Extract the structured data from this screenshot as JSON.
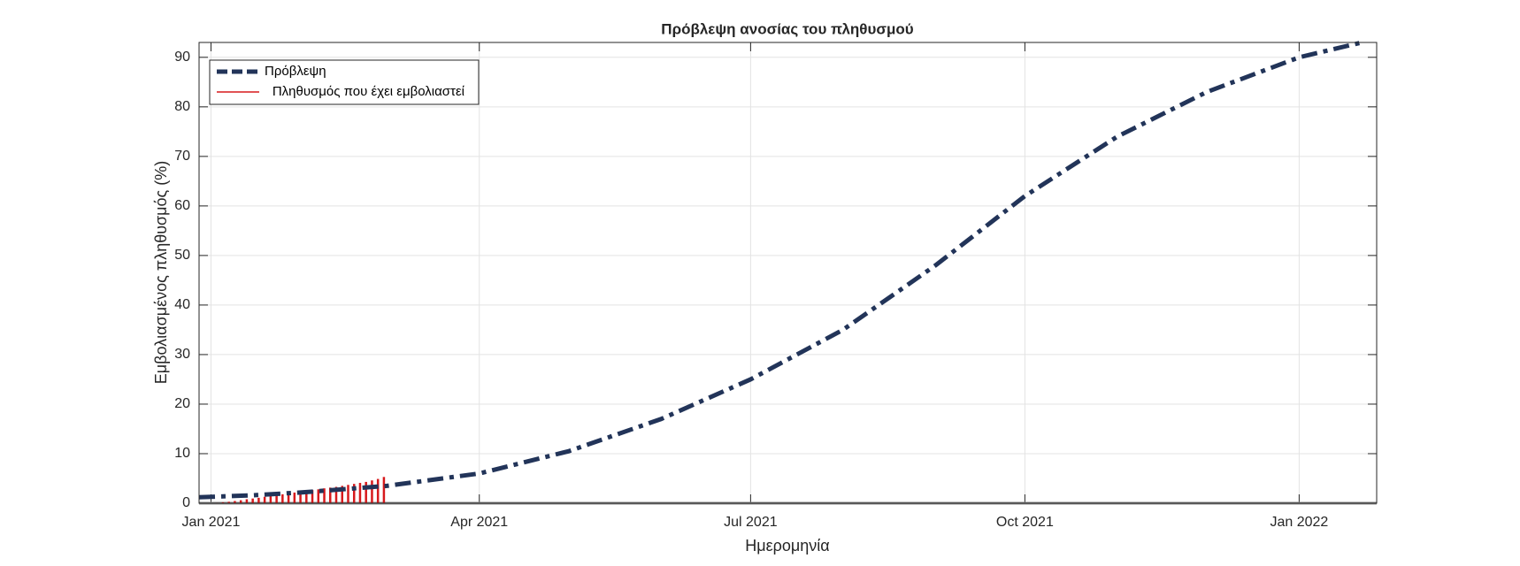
{
  "chart_data": {
    "type": "line",
    "title": "Πρόβλεψη ανοσίας του πληθυσμού",
    "xlabel": "Ημερομηνία",
    "ylabel": "Εμβολιασμένος πληθυσμός (%)",
    "xlim": [
      "2020-12-28",
      "2022-01-27"
    ],
    "xticks": [
      {
        "value": "2021-01-01",
        "label": "Jan 2021"
      },
      {
        "value": "2021-04-01",
        "label": "Apr 2021"
      },
      {
        "value": "2021-07-01",
        "label": "Jul 2021"
      },
      {
        "value": "2021-10-01",
        "label": "Oct 2021"
      },
      {
        "value": "2022-01-01",
        "label": "Jan 2022"
      }
    ],
    "ylim": [
      0,
      93
    ],
    "yticks": [
      0,
      10,
      20,
      30,
      40,
      50,
      60,
      70,
      80,
      90
    ],
    "grid": true,
    "legend": "upper-left",
    "series": [
      {
        "name": "Πρόβλεψη",
        "color": "#223459",
        "style": "dash-dot",
        "x": [
          "2020-12-28",
          "2021-01-15",
          "2021-02-01",
          "2021-03-01",
          "2021-04-01",
          "2021-05-01",
          "2021-06-01",
          "2021-07-01",
          "2021-08-01",
          "2021-09-01",
          "2021-10-01",
          "2021-11-01",
          "2021-12-01",
          "2022-01-01",
          "2022-01-22"
        ],
        "values": [
          1.2,
          1.6,
          2.2,
          3.5,
          6,
          10.5,
          17,
          25,
          35,
          48,
          62,
          74,
          83,
          90,
          93
        ]
      },
      {
        "name": "Πληθυσμός που έχει εμβολιαστεί",
        "color": "#d7191c",
        "style": "stem",
        "x": [
          "2021-01-01",
          "2021-01-03",
          "2021-01-05",
          "2021-01-07",
          "2021-01-09",
          "2021-01-11",
          "2021-01-13",
          "2021-01-15",
          "2021-01-17",
          "2021-01-19",
          "2021-01-21",
          "2021-01-23",
          "2021-01-25",
          "2021-01-27",
          "2021-01-29",
          "2021-01-31",
          "2021-02-02",
          "2021-02-04",
          "2021-02-06",
          "2021-02-08",
          "2021-02-10",
          "2021-02-12",
          "2021-02-14",
          "2021-02-16",
          "2021-02-18",
          "2021-02-20",
          "2021-02-22",
          "2021-02-24",
          "2021-02-26",
          "2021-02-28"
        ],
        "values": [
          0.05,
          0.1,
          0.2,
          0.3,
          0.45,
          0.6,
          0.8,
          0.95,
          1.1,
          1.3,
          1.5,
          1.65,
          1.8,
          2.0,
          2.15,
          2.3,
          2.5,
          2.65,
          2.8,
          3.0,
          3.15,
          3.3,
          3.5,
          3.7,
          3.9,
          4.1,
          4.3,
          4.6,
          4.9,
          5.3
        ]
      }
    ]
  }
}
